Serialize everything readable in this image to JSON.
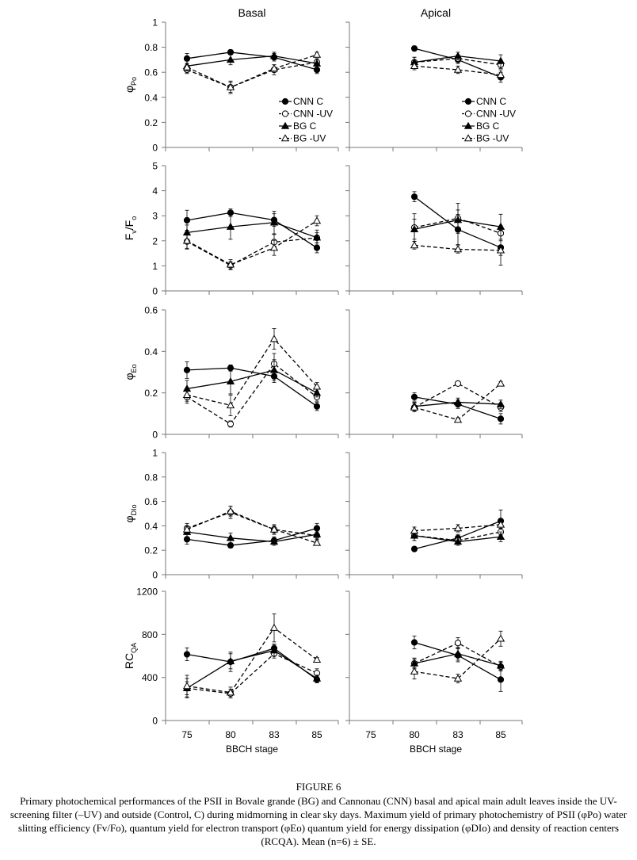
{
  "figure": {
    "column_titles": [
      "Basal",
      "Apical"
    ],
    "x_label": "BBCH stage",
    "x_ticks": [
      "75",
      "80",
      "83",
      "85"
    ],
    "legend": [
      {
        "key": "cnn_c",
        "label": "CNN C"
      },
      {
        "key": "cnn_uv",
        "label": "CNN  -UV"
      },
      {
        "key": "bg_c",
        "label": "BG C"
      },
      {
        "key": "bg_uv",
        "label": "BG  -UV"
      }
    ]
  },
  "caption": {
    "title": "FIGURE 6",
    "text": "Primary photochemical performances of the PSII in Bovale grande (BG) and Cannonau (CNN) basal and apical main adult leaves inside the UV-screening filter (–UV) and outside (Control, C) during midmorning in clear sky days. Maximum yield of primary photochemistry of PSII (φPo) water slitting efficiency (Fv/Fo), quantum yield for electron transport (φEo) quantum yield for energy dissipation (φDIo) and density of reaction centers (RCQA). Mean (n=6) ± SE."
  },
  "chart_data": [
    {
      "type": "line",
      "row": 0,
      "ylabel": "φPo",
      "ylim": [
        0,
        1
      ],
      "yticks": [
        "0",
        "0.2",
        "0.4",
        "0.6",
        "0.8",
        "1"
      ],
      "panels": [
        {
          "column": "Basal",
          "x": [
            75,
            80,
            83,
            85
          ],
          "series": [
            {
              "name": "CNN C",
              "values": [
                0.71,
                0.76,
                0.72,
                0.62
              ],
              "errors": [
                0.04,
                0.02,
                0.03,
                0.03
              ]
            },
            {
              "name": "CNN  -UV",
              "values": [
                0.62,
                0.48,
                0.62,
                0.68
              ],
              "errors": [
                0.03,
                0.05,
                0.04,
                0.03
              ]
            },
            {
              "name": "BG C",
              "values": [
                0.65,
                0.7,
                0.73,
                0.67
              ],
              "errors": [
                0.04,
                0.04,
                0.03,
                0.03
              ]
            },
            {
              "name": "BG  -UV",
              "values": [
                0.64,
                0.48,
                0.63,
                0.74
              ],
              "errors": [
                0.03,
                0.04,
                0.03,
                0.02
              ]
            }
          ]
        },
        {
          "column": "Apical",
          "x": [
            80,
            83,
            85
          ],
          "series": [
            {
              "name": "CNN C",
              "values": [
                0.79,
                0.7,
                0.56
              ],
              "errors": [
                0.02,
                0.03,
                0.04
              ]
            },
            {
              "name": "CNN  -UV",
              "values": [
                0.68,
                0.71,
                0.66
              ],
              "errors": [
                0.04,
                0.03,
                0.03
              ]
            },
            {
              "name": "BG C",
              "values": [
                0.68,
                0.73,
                0.69
              ],
              "errors": [
                0.04,
                0.03,
                0.05
              ]
            },
            {
              "name": "BG  -UV",
              "values": [
                0.65,
                0.62,
                0.58
              ],
              "errors": [
                0.03,
                0.03,
                0.04
              ]
            }
          ]
        }
      ]
    },
    {
      "type": "line",
      "row": 1,
      "ylabel": "Fv/Fo",
      "ylim": [
        0,
        5
      ],
      "yticks": [
        "0",
        "1",
        "2",
        "3",
        "4",
        "5"
      ],
      "panels": [
        {
          "column": "Basal",
          "x": [
            75,
            80,
            83,
            85
          ],
          "series": [
            {
              "name": "CNN C",
              "values": [
                2.82,
                3.12,
                2.83,
                1.72
              ],
              "errors": [
                0.4,
                0.15,
                0.25,
                0.2
              ]
            },
            {
              "name": "CNN  -UV",
              "values": [
                1.97,
                1.02,
                1.95,
                2.12
              ],
              "errors": [
                0.3,
                0.15,
                0.3,
                0.2
              ]
            },
            {
              "name": "BG C",
              "values": [
                2.33,
                2.56,
                2.73,
                2.13
              ],
              "errors": [
                0.3,
                0.5,
                0.45,
                0.3
              ]
            },
            {
              "name": "BG  -UV",
              "values": [
                2.0,
                1.05,
                1.72,
                2.8
              ],
              "errors": [
                0.3,
                0.2,
                0.3,
                0.2
              ]
            }
          ]
        },
        {
          "column": "Apical",
          "x": [
            80,
            83,
            85
          ],
          "series": [
            {
              "name": "CNN C",
              "values": [
                3.76,
                2.45,
                1.73
              ],
              "errors": [
                0.2,
                0.6,
                0.7
              ]
            },
            {
              "name": "CNN  -UV",
              "values": [
                2.53,
                2.9,
                2.3
              ],
              "errors": [
                0.55,
                0.6,
                0.3
              ]
            },
            {
              "name": "BG C",
              "values": [
                2.46,
                2.83,
                2.56
              ],
              "errors": [
                0.4,
                0.4,
                0.5
              ]
            },
            {
              "name": "BG  -UV",
              "values": [
                1.82,
                1.66,
                1.62
              ],
              "errors": [
                0.15,
                0.15,
                0.2
              ]
            }
          ]
        }
      ]
    },
    {
      "type": "line",
      "row": 2,
      "ylabel": "φEo",
      "ylim": [
        0,
        0.6
      ],
      "yticks": [
        "0",
        "0.2",
        "0.4",
        "0.6"
      ],
      "panels": [
        {
          "column": "Basal",
          "x": [
            75,
            80,
            83,
            85
          ],
          "series": [
            {
              "name": "CNN C",
              "values": [
                0.31,
                0.32,
                0.28,
                0.135
              ],
              "errors": [
                0.04,
                0.015,
                0.03,
                0.02
              ]
            },
            {
              "name": "CNN  -UV",
              "values": [
                0.18,
                0.05,
                0.34,
                0.18
              ],
              "errors": [
                0.03,
                0.015,
                0.05,
                0.02
              ]
            },
            {
              "name": "BG C",
              "values": [
                0.22,
                0.255,
                0.31,
                0.2
              ],
              "errors": [
                0.04,
                0.06,
                0.05,
                0.02
              ]
            },
            {
              "name": "BG  -UV",
              "values": [
                0.19,
                0.14,
                0.46,
                0.23
              ],
              "errors": [
                0.03,
                0.05,
                0.05,
                0.02
              ]
            }
          ]
        },
        {
          "column": "Apical",
          "x": [
            80,
            83,
            85
          ],
          "series": [
            {
              "name": "CNN C",
              "values": [
                0.18,
                0.145,
                0.075
              ],
              "errors": [
                0.02,
                0.02,
                0.025
              ]
            },
            {
              "name": "CNN  -UV",
              "values": [
                0.13,
                0.245,
                0.13
              ],
              "errors": [
                0.02,
                0.01,
                0.02
              ]
            },
            {
              "name": "BG C",
              "values": [
                0.135,
                0.155,
                0.145
              ],
              "errors": [
                0.02,
                0.02,
                0.02
              ]
            },
            {
              "name": "BG  -UV",
              "values": [
                0.13,
                0.07,
                0.245
              ],
              "errors": [
                0.02,
                0.01,
                0.01
              ]
            }
          ]
        }
      ]
    },
    {
      "type": "line",
      "row": 3,
      "ylabel": "φDIo",
      "ylim": [
        0,
        1
      ],
      "yticks": [
        "0",
        "0.2",
        "0.4",
        "0.6",
        "0.8",
        "1"
      ],
      "panels": [
        {
          "column": "Basal",
          "x": [
            75,
            80,
            83,
            85
          ],
          "series": [
            {
              "name": "CNN C",
              "values": [
                0.29,
                0.24,
                0.28,
                0.38
              ],
              "errors": [
                0.04,
                0.02,
                0.03,
                0.04
              ]
            },
            {
              "name": "CNN  -UV",
              "values": [
                0.38,
                0.51,
                0.37,
                0.32
              ],
              "errors": [
                0.04,
                0.05,
                0.04,
                0.03
              ]
            },
            {
              "name": "BG C",
              "values": [
                0.35,
                0.3,
                0.27,
                0.33
              ],
              "errors": [
                0.04,
                0.04,
                0.03,
                0.03
              ]
            },
            {
              "name": "BG  -UV",
              "values": [
                0.37,
                0.52,
                0.37,
                0.26
              ],
              "errors": [
                0.03,
                0.04,
                0.03,
                0.02
              ]
            }
          ]
        },
        {
          "column": "Apical",
          "x": [
            80,
            83,
            85
          ],
          "series": [
            {
              "name": "CNN C",
              "values": [
                0.21,
                0.3,
                0.44
              ],
              "errors": [
                0.02,
                0.03,
                0.09
              ]
            },
            {
              "name": "CNN  -UV",
              "values": [
                0.32,
                0.28,
                0.35
              ],
              "errors": [
                0.04,
                0.03,
                0.03
              ]
            },
            {
              "name": "BG C",
              "values": [
                0.32,
                0.27,
                0.31
              ],
              "errors": [
                0.04,
                0.03,
                0.04
              ]
            },
            {
              "name": "BG  -UV",
              "values": [
                0.36,
                0.38,
                0.41
              ],
              "errors": [
                0.03,
                0.03,
                0.03
              ]
            }
          ]
        }
      ]
    },
    {
      "type": "line",
      "row": 4,
      "ylabel": "RCQA",
      "ylim": [
        0,
        1200
      ],
      "yticks": [
        "0",
        "400",
        "800",
        "1200"
      ],
      "panels": [
        {
          "column": "Basal",
          "x": [
            75,
            80,
            83,
            85
          ],
          "series": [
            {
              "name": "CNN C",
              "values": [
                615,
                545,
                670,
                380
              ],
              "errors": [
                60,
                90,
                40,
                30
              ]
            },
            {
              "name": "CNN  -UV",
              "values": [
                300,
                250,
                620,
                440
              ],
              "errors": [
                90,
                40,
                40,
                40
              ]
            },
            {
              "name": "BG C",
              "values": [
                300,
                550,
                650,
                390
              ],
              "errors": [
                60,
                70,
                50,
                30
              ]
            },
            {
              "name": "BG  -UV",
              "values": [
                320,
                260,
                860,
                565
              ],
              "errors": [
                100,
                50,
                130,
                20
              ]
            }
          ]
        },
        {
          "column": "Apical",
          "x": [
            80,
            83,
            85
          ],
          "series": [
            {
              "name": "CNN C",
              "values": [
                725,
                605,
                380
              ],
              "errors": [
                60,
                60,
                110
              ]
            },
            {
              "name": "CNN  -UV",
              "values": [
                530,
                720,
                500
              ],
              "errors": [
                40,
                50,
                40
              ]
            },
            {
              "name": "BG C",
              "values": [
                530,
                620,
                510
              ],
              "errors": [
                50,
                60,
                40
              ]
            },
            {
              "name": "BG  -UV",
              "values": [
                455,
                390,
                760
              ],
              "errors": [
                70,
                40,
                70
              ]
            }
          ]
        }
      ]
    }
  ]
}
